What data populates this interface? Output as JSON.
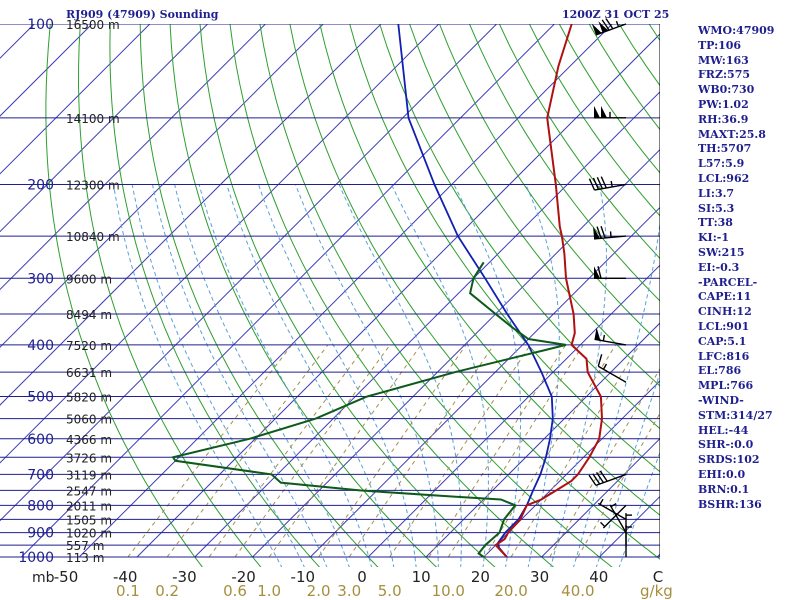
{
  "header": {
    "station": "RJ909 (47909) Sounding",
    "time": "1200Z 31 OCT 25"
  },
  "indices": [
    "WMO:47909",
    "TP:106",
    "MW:163",
    "FRZ:575",
    "WB0:730",
    "PW:1.02",
    "RH:36.9",
    "MAXT:25.8",
    "TH:5707",
    "L57:5.9",
    "LCL:962",
    "LI:3.7",
    "SI:5.3",
    "TT:38",
    "KI:-1",
    "SW:215",
    "EI:-0.3",
    "-PARCEL-",
    "CAPE:11",
    "CINH:12",
    "LCL:901",
    "CAP:5.1",
    "LFC:816",
    "EL:786",
    "MPL:766",
    "-WIND-",
    "STM:314/27",
    "HEL:-44",
    "SHR-:0.0",
    "SRDS:102",
    "EHI:0.0",
    "BRN:0.1",
    "BSHR:136"
  ],
  "colors": {
    "isobar": "#1f1f8f",
    "isotherm": "#3b3bb8",
    "dry_adiabat": "#2e9e2e",
    "moist_adiabat": "#5aa0d8",
    "mixing_ratio": "#a59048",
    "temperature": "#b01010",
    "dewpoint": "#0d5a1a",
    "parcel": "#1020b0",
    "wind": "#000000",
    "mixing_label": "#a58f3f"
  },
  "chart_data": {
    "type": "skew-t",
    "pressure_levels": [
      {
        "p": 100,
        "label": "100",
        "height": "16500 m"
      },
      {
        "p": 150,
        "label": "",
        "height": "14100 m"
      },
      {
        "p": 200,
        "label": "200",
        "height": "12300 m"
      },
      {
        "p": 250,
        "label": "",
        "height": "10840 m"
      },
      {
        "p": 300,
        "label": "300",
        "height": "9600 m"
      },
      {
        "p": 350,
        "label": "",
        "height": "8494 m"
      },
      {
        "p": 400,
        "label": "400",
        "height": "7520 m"
      },
      {
        "p": 450,
        "label": "",
        "height": "6631 m"
      },
      {
        "p": 500,
        "label": "500",
        "height": "5820 m"
      },
      {
        "p": 550,
        "label": "",
        "height": "5060 m"
      },
      {
        "p": 600,
        "label": "600",
        "height": "4366 m"
      },
      {
        "p": 650,
        "label": "",
        "height": "3726 m"
      },
      {
        "p": 700,
        "label": "700",
        "height": "3119 m"
      },
      {
        "p": 750,
        "label": "",
        "height": "2547 m"
      },
      {
        "p": 800,
        "label": "800",
        "height": "2011 m"
      },
      {
        "p": 850,
        "label": "",
        "height": "1505 m"
      },
      {
        "p": 900,
        "label": "900",
        "height": "1020 m"
      },
      {
        "p": 950,
        "label": "",
        "height": "557 m"
      },
      {
        "p": 1000,
        "label": "1000",
        "height": "113 m"
      }
    ],
    "pressure_unit": "mb",
    "temperature_ticks": [
      "-50",
      "-40",
      "-30",
      "-20",
      "-10",
      "0",
      "10",
      "20",
      "30",
      "40",
      "C"
    ],
    "mixing_ratio_ticks": [
      {
        "label": "0.1",
        "g": 0.1
      },
      {
        "label": "0.2",
        "g": 0.2
      },
      {
        "label": "0.6",
        "g": 0.6
      },
      {
        "label": "1.0",
        "g": 1.0
      },
      {
        "label": "2.0",
        "g": 2.0
      },
      {
        "label": "3.0",
        "g": 3.0
      },
      {
        "label": "5.0",
        "g": 5.0
      },
      {
        "label": "10.0",
        "g": 10.0
      },
      {
        "label": "20.0",
        "g": 20.0
      },
      {
        "label": "40.0",
        "g": 40.0
      }
    ],
    "mixing_ratio_unit": "g/kg",
    "temperature_profile": [
      [
        1000,
        24
      ],
      [
        975,
        22
      ],
      [
        950,
        20
      ],
      [
        925,
        20.5
      ],
      [
        900,
        20
      ],
      [
        850,
        19.8
      ],
      [
        800,
        18.5
      ],
      [
        780,
        20
      ],
      [
        750,
        21
      ],
      [
        720,
        22
      ],
      [
        700,
        22
      ],
      [
        650,
        21
      ],
      [
        600,
        19.5
      ],
      [
        550,
        16.5
      ],
      [
        500,
        12.5
      ],
      [
        450,
        6
      ],
      [
        425,
        3.5
      ],
      [
        400,
        -1.5
      ],
      [
        380,
        -3
      ],
      [
        350,
        -6.5
      ],
      [
        300,
        -14
      ],
      [
        270,
        -18.5
      ],
      [
        250,
        -22
      ],
      [
        240,
        -24
      ],
      [
        200,
        -32
      ],
      [
        150,
        -45
      ],
      [
        120,
        -52
      ],
      [
        100,
        -57
      ]
    ],
    "dewpoint_profile": [
      [
        1000,
        20
      ],
      [
        985,
        18.5
      ],
      [
        950,
        18.2
      ],
      [
        900,
        18.5
      ],
      [
        850,
        17
      ],
      [
        800,
        16.5
      ],
      [
        780,
        13
      ],
      [
        770,
        4
      ],
      [
        750,
        -13
      ],
      [
        725,
        -28
      ],
      [
        700,
        -31
      ],
      [
        660,
        -50
      ],
      [
        650,
        -51
      ],
      [
        600,
        -41
      ],
      [
        550,
        -33
      ],
      [
        500,
        -28
      ],
      [
        450,
        -17
      ],
      [
        420,
        -8.5
      ],
      [
        410,
        -5.5
      ],
      [
        400,
        -2.5
      ],
      [
        390,
        -10
      ],
      [
        370,
        -15
      ],
      [
        350,
        -20
      ],
      [
        320,
        -28
      ],
      [
        300,
        -30
      ],
      [
        280,
        -31
      ]
    ],
    "parcel_profile": [
      [
        1000,
        24
      ],
      [
        980,
        22.5
      ],
      [
        960,
        21
      ],
      [
        940,
        20
      ],
      [
        900,
        19.5
      ],
      [
        850,
        19.5
      ],
      [
        800,
        18.5
      ],
      [
        750,
        17
      ],
      [
        700,
        15.5
      ],
      [
        650,
        13.5
      ],
      [
        600,
        11
      ],
      [
        550,
        8
      ],
      [
        500,
        4
      ],
      [
        450,
        -2
      ],
      [
        400,
        -9
      ],
      [
        350,
        -18
      ],
      [
        300,
        -28
      ],
      [
        250,
        -40
      ],
      [
        200,
        -53
      ],
      [
        150,
        -69
      ],
      [
        100,
        -87
      ]
    ],
    "wind_barbs": [
      {
        "p": 100,
        "dir": 250,
        "spd": 125
      },
      {
        "p": 150,
        "dir": 270,
        "spd": 105
      },
      {
        "p": 200,
        "dir": 260,
        "spd": 45
      },
      {
        "p": 250,
        "dir": 265,
        "spd": 75
      },
      {
        "p": 300,
        "dir": 270,
        "spd": 60
      },
      {
        "p": 400,
        "dir": 280,
        "spd": 55
      },
      {
        "p": 470,
        "dir": 300,
        "spd": 15
      },
      {
        "p": 700,
        "dir": 250,
        "spd": 40
      },
      {
        "p": 800,
        "dir": 225,
        "spd": 5
      },
      {
        "p": 850,
        "dir": 300,
        "spd": 5
      },
      {
        "p": 900,
        "dir": 330,
        "spd": 5
      },
      {
        "p": 950,
        "dir": 0,
        "spd": 5
      },
      {
        "p": 1000,
        "dir": 0,
        "spd": 5
      }
    ],
    "skew": true,
    "log_pressure": true,
    "grid": true
  }
}
